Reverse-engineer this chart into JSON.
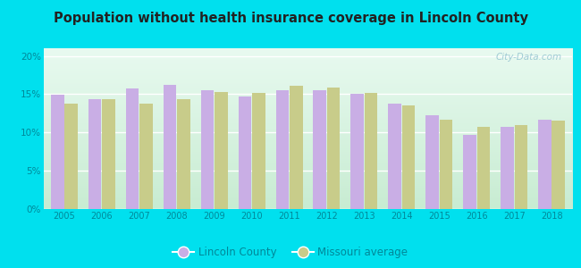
{
  "title": "Population without health insurance coverage in Lincoln County",
  "years": [
    2005,
    2006,
    2007,
    2008,
    2009,
    2010,
    2011,
    2012,
    2013,
    2014,
    2015,
    2016,
    2017,
    2018
  ],
  "lincoln_county": [
    14.9,
    14.4,
    15.7,
    16.2,
    15.5,
    14.7,
    15.5,
    15.5,
    15.0,
    13.8,
    12.3,
    9.7,
    10.7,
    11.7
  ],
  "missouri_avg": [
    13.8,
    14.4,
    13.8,
    14.3,
    15.3,
    15.2,
    16.1,
    15.9,
    15.2,
    13.5,
    11.7,
    10.7,
    11.0,
    11.5
  ],
  "lincoln_color": "#c9aee5",
  "missouri_color": "#c8cc8a",
  "background_outer": "#00e0ee",
  "background_inner_top": "#e8faf0",
  "background_inner_bottom": "#c8ecd4",
  "title_color": "#222222",
  "tick_label_color": "#008899",
  "ylim": [
    0,
    21
  ],
  "yticks": [
    0,
    5,
    10,
    15,
    20
  ],
  "ytick_labels": [
    "0%",
    "5%",
    "10%",
    "15%",
    "20%"
  ],
  "legend_lincoln": "Lincoln County",
  "legend_missouri": "Missouri average",
  "watermark": "City-Data.com"
}
